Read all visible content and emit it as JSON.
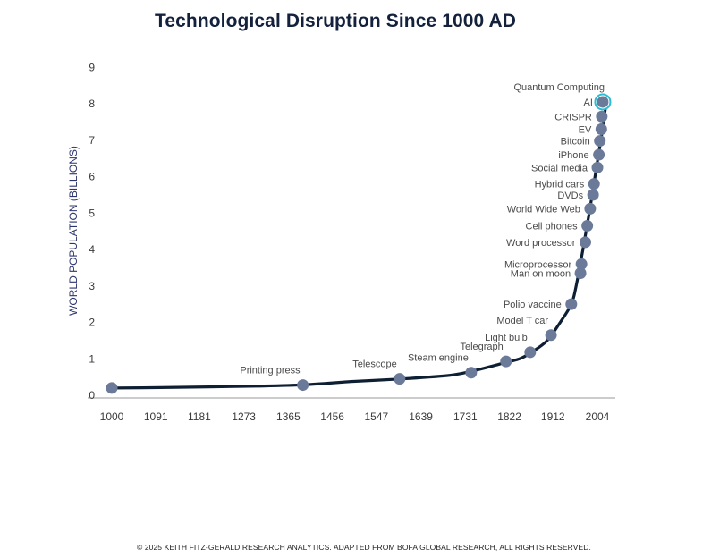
{
  "title": "Technological Disruption Since 1000 AD",
  "footer": "© 2025 KEITH FITZ-GERALD RESEARCH ANALYTICS. ADAPTED FROM BOFA GLOBAL RESEARCH, ALL RIGHTS RESERVED.",
  "colors": {
    "line": "#0f1f33",
    "marker": "#6a7a98",
    "highlight_ring": "#29bcd4",
    "axis": "#9a9a9a",
    "title": "#14213d"
  },
  "chart_data": {
    "type": "line",
    "title": "Technological Disruption Since 1000 AD",
    "xlabel": "",
    "ylabel": "WORLD POPULATION (BILLIONS)",
    "xlim": [
      1000,
      2030
    ],
    "ylim": [
      0,
      9
    ],
    "x_ticks": [
      1000,
      1091,
      1181,
      1273,
      1365,
      1456,
      1547,
      1639,
      1731,
      1822,
      1912,
      2004
    ],
    "y_ticks": [
      0,
      1,
      2,
      3,
      4,
      5,
      6,
      7,
      8,
      9
    ],
    "curve": [
      {
        "x": 1000,
        "y": 0.2
      },
      {
        "x": 1100,
        "y": 0.21
      },
      {
        "x": 1200,
        "y": 0.23
      },
      {
        "x": 1300,
        "y": 0.25
      },
      {
        "x": 1400,
        "y": 0.29
      },
      {
        "x": 1500,
        "y": 0.38
      },
      {
        "x": 1600,
        "y": 0.45
      },
      {
        "x": 1700,
        "y": 0.55
      },
      {
        "x": 1750,
        "y": 0.68
      },
      {
        "x": 1800,
        "y": 0.85
      },
      {
        "x": 1843,
        "y": 1.0
      },
      {
        "x": 1870,
        "y": 1.2
      },
      {
        "x": 1900,
        "y": 1.5
      },
      {
        "x": 1927,
        "y": 2.0
      },
      {
        "x": 1950,
        "y": 2.5
      },
      {
        "x": 1960,
        "y": 3.0
      },
      {
        "x": 1974,
        "y": 4.0
      },
      {
        "x": 1987,
        "y": 5.0
      },
      {
        "x": 1999,
        "y": 6.0
      },
      {
        "x": 2011,
        "y": 7.0
      },
      {
        "x": 2022,
        "y": 8.0
      }
    ],
    "points": [
      {
        "label": "",
        "x": 1000,
        "y": 0.2,
        "anchor": "end"
      },
      {
        "label": "Printing press",
        "x": 1395,
        "y": 0.28,
        "anchor": "end"
      },
      {
        "label": "Telescope",
        "x": 1595,
        "y": 0.45,
        "anchor": "end"
      },
      {
        "label": "Steam engine",
        "x": 1743,
        "y": 0.62,
        "anchor": "end"
      },
      {
        "label": "Telegraph",
        "x": 1815,
        "y": 0.93,
        "anchor": "end"
      },
      {
        "label": "Light bulb",
        "x": 1865,
        "y": 1.18,
        "anchor": "end"
      },
      {
        "label": "Model T car",
        "x": 1908,
        "y": 1.65,
        "anchor": "end"
      },
      {
        "label": "Polio vaccine",
        "x": 1950,
        "y": 2.5,
        "anchor": "end"
      },
      {
        "label": "Man on moon",
        "x": 1969,
        "y": 3.35,
        "anchor": "end"
      },
      {
        "label": "Microprocessor",
        "x": 1971,
        "y": 3.6,
        "anchor": "end"
      },
      {
        "label": "Word processor",
        "x": 1979,
        "y": 4.2,
        "anchor": "end"
      },
      {
        "label": "Cell phones",
        "x": 1983,
        "y": 4.65,
        "anchor": "end"
      },
      {
        "label": "World Wide Web",
        "x": 1989,
        "y": 5.12,
        "anchor": "end"
      },
      {
        "label": "DVDs",
        "x": 1995,
        "y": 5.5,
        "anchor": "end"
      },
      {
        "label": "Hybrid cars",
        "x": 1997,
        "y": 5.8,
        "anchor": "end"
      },
      {
        "label": "Social media",
        "x": 2004,
        "y": 6.25,
        "anchor": "end"
      },
      {
        "label": "iPhone",
        "x": 2007,
        "y": 6.6,
        "anchor": "end"
      },
      {
        "label": "Bitcoin",
        "x": 2009,
        "y": 6.98,
        "anchor": "end"
      },
      {
        "label": "EV",
        "x": 2012,
        "y": 7.3,
        "anchor": "end"
      },
      {
        "label": "CRISPR",
        "x": 2013,
        "y": 7.65,
        "anchor": "end"
      },
      {
        "label": "AI",
        "x": 2015,
        "y": 8.05,
        "anchor": "end"
      },
      {
        "label": "Quantum Computing",
        "x": 2015,
        "y": 8.05,
        "anchor": "top",
        "marker": false
      }
    ]
  }
}
